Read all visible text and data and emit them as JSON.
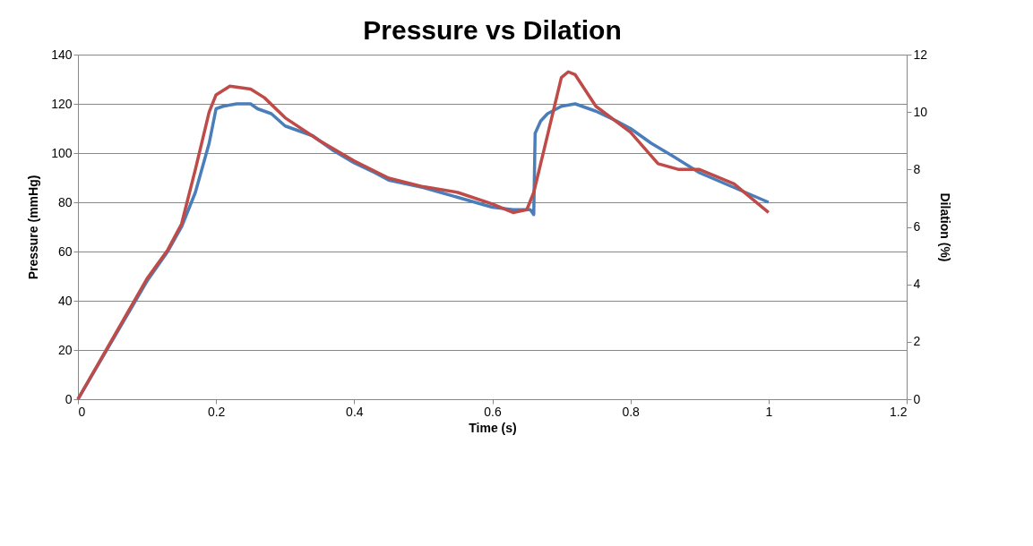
{
  "chart_data": {
    "type": "line",
    "title": "Pressure vs Dilation",
    "xlabel": "Time (s)",
    "ylabel": "Pressure (mmHg)",
    "y2label": "Dilation (%)",
    "xlim": [
      0,
      1.2
    ],
    "xticks": [
      0,
      0.2,
      0.4,
      0.6,
      0.8,
      1,
      1.2
    ],
    "ylim": [
      0,
      140
    ],
    "yticks": [
      0,
      20,
      40,
      60,
      80,
      100,
      120,
      140
    ],
    "y2lim": [
      0,
      12
    ],
    "y2ticks": [
      0,
      2,
      4,
      6,
      8,
      10,
      12
    ],
    "grid": "y",
    "line_style": "solid",
    "series": [
      {
        "color": "#4a7ebb",
        "x": [
          0,
          0.05,
          0.1,
          0.13,
          0.15,
          0.17,
          0.19,
          0.2,
          0.21,
          0.23,
          0.25,
          0.26,
          0.28,
          0.3,
          0.34,
          0.37,
          0.4,
          0.43,
          0.45,
          0.5,
          0.55,
          0.6,
          0.63,
          0.655,
          0.66,
          0.662,
          0.67,
          0.68,
          0.7,
          0.72,
          0.75,
          0.78,
          0.8,
          0.83,
          0.86,
          0.9,
          0.95,
          1.0
        ],
        "values": [
          0,
          24,
          48,
          60,
          70,
          84,
          104,
          118,
          119,
          120,
          120,
          118,
          116,
          111,
          107,
          101,
          96,
          92,
          89,
          86,
          82,
          78,
          77,
          77,
          75,
          108,
          113,
          116,
          119,
          120,
          117,
          113,
          110,
          104,
          99,
          92,
          86,
          80
        ]
      },
      {
        "color": "#be4b48",
        "axis": "y2",
        "x": [
          0,
          0.05,
          0.1,
          0.13,
          0.15,
          0.17,
          0.19,
          0.2,
          0.22,
          0.25,
          0.27,
          0.3,
          0.35,
          0.4,
          0.45,
          0.5,
          0.55,
          0.6,
          0.63,
          0.65,
          0.66,
          0.68,
          0.7,
          0.71,
          0.72,
          0.75,
          0.8,
          0.84,
          0.87,
          0.9,
          0.95,
          1.0
        ],
        "values": [
          0,
          2.1,
          4.2,
          5.2,
          6.1,
          8.0,
          10.0,
          10.6,
          10.9,
          10.8,
          10.5,
          9.8,
          9.0,
          8.3,
          7.7,
          7.4,
          7.2,
          6.8,
          6.5,
          6.6,
          7.2,
          9.2,
          11.2,
          11.4,
          11.3,
          10.2,
          9.3,
          8.2,
          8.0,
          8.0,
          7.5,
          6.5
        ]
      }
    ]
  }
}
